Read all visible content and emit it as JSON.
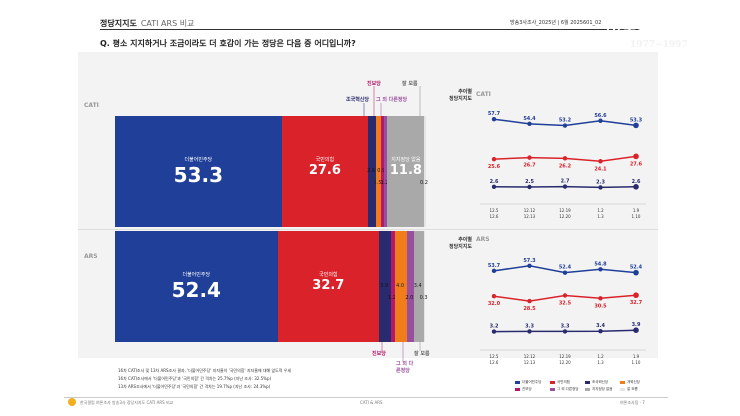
{
  "header": {
    "title": "정당지지도",
    "subtitle": "CATI ARS 비교",
    "survey_no": "방송3사조사_2025년 | 6월 2025601_02",
    "question": "Q. 평소 지지하거나 조금이라도 더 호감이 가는 정당은 다음 중 어디입니까?"
  },
  "logo": {
    "line1": "한국갤럽 연",
    "line2": "여론조사 갤럽",
    "line3": "1977~1997"
  },
  "modes": {
    "cati": "CATI",
    "ars": "ARS"
  },
  "colors": {
    "democratic": "#1f3f98",
    "ppp": "#d9222a",
    "rebuilding": "#2a2a6e",
    "reform": "#f07d1a",
    "progressive": "#b2186b",
    "other": "#9a4f9e",
    "none": "#a9a9a9",
    "dontknow": "#e4e4e4"
  },
  "chart_data": [
    {
      "type": "bar",
      "title": "CATI",
      "series": [
        {
          "key": "democratic",
          "name": "더불어민주당",
          "value": 53.3
        },
        {
          "key": "ppp",
          "name": "국민의힘",
          "value": 27.6
        },
        {
          "key": "rebuilding",
          "name": "조국혁신당",
          "value": 2.6
        },
        {
          "key": "reform",
          "name": "개혁신당",
          "value": 1.5
        },
        {
          "key": "progressive",
          "name": "진보당",
          "value": 0.9
        },
        {
          "key": "other",
          "name": "그 외 다른정당",
          "value": 1.2
        },
        {
          "key": "none",
          "name": "지지정당 없음",
          "value": 11.8
        },
        {
          "key": "dontknow",
          "name": "잘 모름",
          "value": 0.2
        }
      ]
    },
    {
      "type": "bar",
      "title": "ARS",
      "series": [
        {
          "key": "democratic",
          "name": "더불어민주당",
          "value": 52.4
        },
        {
          "key": "ppp",
          "name": "국민의힘",
          "value": 32.7
        },
        {
          "key": "rebuilding",
          "name": "조국혁신당",
          "value": 3.9
        },
        {
          "key": "progressive",
          "name": "진보당",
          "value": 1.2
        },
        {
          "key": "reform",
          "name": "개혁신당",
          "value": 4.0
        },
        {
          "key": "other",
          "name": "그 외 다른정당",
          "value": 2.0
        },
        {
          "key": "none",
          "name": "지지정당 없음",
          "value": 3.4
        },
        {
          "key": "dontknow",
          "name": "잘 모름",
          "value": 0.3
        }
      ]
    },
    {
      "type": "line",
      "title": "추이별 정당지지도 CATI",
      "x": [
        "12.5|12.6",
        "12.12|12.13",
        "12.19|12.20",
        "1.2|1.3",
        "1.9|1.10"
      ],
      "series": [
        {
          "key": "democratic",
          "values": [
            57.7,
            54.4,
            53.2,
            56.6,
            53.3
          ]
        },
        {
          "key": "ppp",
          "values": [
            25.6,
            26.7,
            26.2,
            24.1,
            27.6
          ]
        },
        {
          "key": "rebuilding",
          "values": [
            2.6,
            2.5,
            2.7,
            2.3,
            2.6
          ]
        }
      ]
    },
    {
      "type": "line",
      "title": "추이별 정당지지도 ARS",
      "x": [
        "12.5|12.6",
        "12.12|12.13",
        "12.19|12.20",
        "1.2|1.3",
        "1.9|1.10"
      ],
      "series": [
        {
          "key": "democratic",
          "values": [
            53.7,
            57.3,
            52.4,
            54.8,
            52.4
          ]
        },
        {
          "key": "ppp",
          "values": [
            32.0,
            28.5,
            32.5,
            30.5,
            32.7
          ]
        },
        {
          "key": "rebuilding",
          "values": [
            3.2,
            3.3,
            3.3,
            3.4,
            3.9
          ]
        }
      ]
    }
  ],
  "side_labels": {
    "cati_top": [
      "조국혁신당",
      "진보당",
      "그 외 다른정당",
      "잘 모름"
    ],
    "ars_bottom": [
      "진보당",
      "그 외 다른정당",
      "잘 모름"
    ]
  },
  "trend": {
    "title_line1": "추이별",
    "title_line2": "정당지지도",
    "legend": [
      "더불어민주당",
      "국민의힘",
      "조국혁신당",
      "개혁신당",
      "진보당",
      "그 외 다른정당",
      "지지정당 없음",
      "잘 모름"
    ]
  },
  "notes": [
    "16차 CATI조사 및 13차 ARS조사 결과, '더불어민주당' 지지율이 '국민의힘' 지지율에 대해 앞도적 우세",
    "16차 CATI조사에서 '더불어민주당'과 '국민의힘' 간 격차는 25.7%p (지난 조사: 32.5%p)",
    "13차 ARS조사에서 '더불어민주당'과 '국민의힘' 간 격차는 19.7%p (지난 조사: 24.3%p)"
  ],
  "footer": {
    "left": "한국갤럽 여론조사 방송3사 정당지지도 CATI ARS 비교",
    "center": "CATI & ARS",
    "right": "여론조사팀 · 7"
  }
}
